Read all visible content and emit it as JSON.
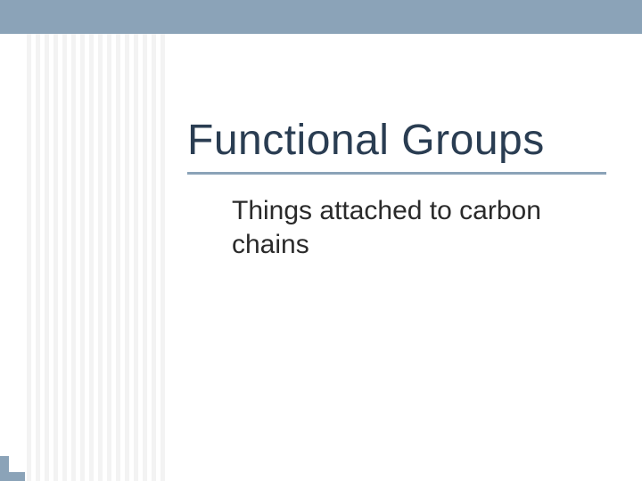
{
  "slide": {
    "title": "Functional Groups",
    "subtitle": "Things attached to carbon chains"
  },
  "style": {
    "accent_color": "#8ba3b8",
    "title_color": "#2a3d52",
    "subtitle_color": "#2a2a2a",
    "background_color": "#ffffff",
    "stripe_color": "#f3f3f3",
    "title_fontsize": 48,
    "subtitle_fontsize": 30,
    "top_bar_height": 38,
    "underline_width": 470,
    "underline_height": 3
  }
}
